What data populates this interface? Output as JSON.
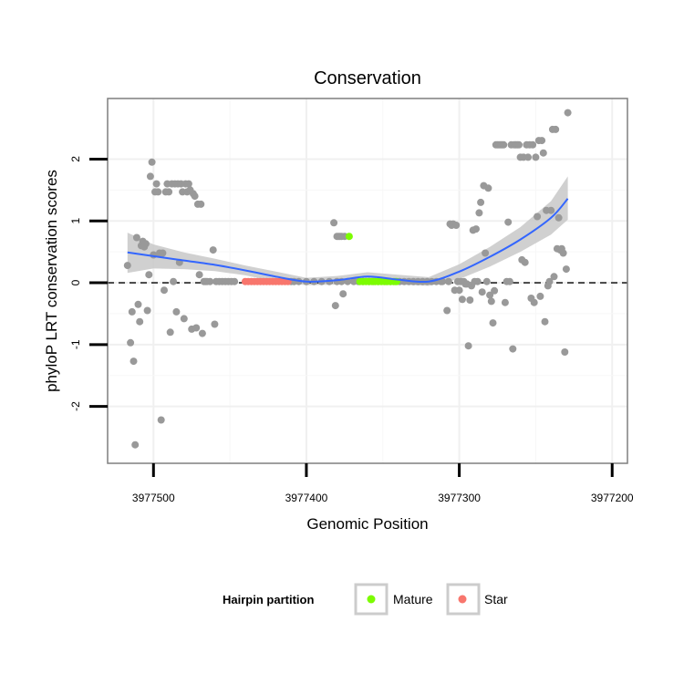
{
  "chart_data": {
    "type": "scatter",
    "title": "Conservation",
    "xlabel": "Genomic Position",
    "ylabel": "phyloP LRT conservation scores",
    "x_reversed": true,
    "xlim": [
      3977530,
      3977190
    ],
    "ylim": [
      -2.92,
      2.98
    ],
    "x_ticks": [
      3977500,
      3977400,
      3977300,
      3977200
    ],
    "x_tick_labels": [
      "3977500",
      "3977400",
      "3977300",
      "3977200"
    ],
    "y_ticks": [
      -2,
      -1,
      0,
      1,
      2
    ],
    "y_tick_labels": [
      "-2",
      "-1",
      "0",
      "1",
      "2"
    ],
    "grid": true,
    "reference_line": {
      "y": 0,
      "style": "dashed"
    },
    "legend": {
      "title": "Hairpin partition",
      "position": "bottom",
      "entries": [
        {
          "label": "Mature",
          "color": "#7cfc00"
        },
        {
          "label": "Star",
          "color": "#f8766d"
        }
      ]
    },
    "colors": {
      "points": "#999999",
      "smooth": "#3366ff",
      "ribbon": "#c8c8c8",
      "mature": "#7cfc00",
      "star": "#f8766d"
    },
    "series": [
      {
        "name": "Hairpin partition",
        "color": "#999999",
        "points": [
          [
            3977517,
            0.28
          ],
          [
            3977515,
            -0.97
          ],
          [
            3977514,
            -0.47
          ],
          [
            3977513,
            -1.27
          ],
          [
            3977512,
            -2.62
          ],
          [
            3977511,
            0.73
          ],
          [
            3977510,
            -0.35
          ],
          [
            3977509,
            -0.63
          ],
          [
            3977508,
            0.6
          ],
          [
            3977507,
            0.67
          ],
          [
            3977506,
            0.58
          ],
          [
            3977505,
            0.63
          ],
          [
            3977504,
            -0.45
          ],
          [
            3977503,
            0.13
          ],
          [
            3977502,
            1.72
          ],
          [
            3977501,
            1.95
          ],
          [
            3977500,
            0.45
          ],
          [
            3977499,
            1.47
          ],
          [
            3977498,
            1.6
          ],
          [
            3977497,
            1.47
          ],
          [
            3977496,
            0.48
          ],
          [
            3977495,
            -2.22
          ],
          [
            3977494,
            0.48
          ],
          [
            3977493,
            -0.12
          ],
          [
            3977492,
            1.47
          ],
          [
            3977491,
            1.6
          ],
          [
            3977490,
            1.47
          ],
          [
            3977489,
            -0.8
          ],
          [
            3977488,
            1.6
          ],
          [
            3977487,
            0.02
          ],
          [
            3977486,
            1.6
          ],
          [
            3977485,
            -0.47
          ],
          [
            3977484,
            1.6
          ],
          [
            3977483,
            0.33
          ],
          [
            3977482,
            1.6
          ],
          [
            3977481,
            1.47
          ],
          [
            3977480,
            -0.58
          ],
          [
            3977479,
            1.6
          ],
          [
            3977478,
            1.47
          ],
          [
            3977477,
            1.6
          ],
          [
            3977476,
            1.5
          ],
          [
            3977475,
            -0.75
          ],
          [
            3977474,
            1.44
          ],
          [
            3977473,
            1.4
          ],
          [
            3977472,
            -0.73
          ],
          [
            3977471,
            1.27
          ],
          [
            3977470,
            0.13
          ],
          [
            3977469,
            1.27
          ],
          [
            3977468,
            -0.82
          ],
          [
            3977467,
            0.02
          ],
          [
            3977466,
            0.02
          ],
          [
            3977465,
            0.02
          ],
          [
            3977463,
            0.02
          ],
          [
            3977461,
            0.53
          ],
          [
            3977460,
            -0.67
          ],
          [
            3977459,
            0.02
          ],
          [
            3977457,
            0.02
          ],
          [
            3977455,
            0.02
          ],
          [
            3977453,
            0.02
          ],
          [
            3977451,
            0.02
          ],
          [
            3977449,
            0.02
          ],
          [
            3977447,
            0.02
          ],
          [
            3977410,
            0.02
          ],
          [
            3977408,
            0.02
          ],
          [
            3977405,
            0.02
          ],
          [
            3977400,
            0.02
          ],
          [
            3977395,
            0.02
          ],
          [
            3977390,
            0.02
          ],
          [
            3977385,
            0.02
          ],
          [
            3977380,
            0.02
          ],
          [
            3977377,
            0.02
          ],
          [
            3977373,
            0.02
          ],
          [
            3977369,
            0.02
          ],
          [
            3977366,
            0.02
          ],
          [
            3977363,
            0.02
          ],
          [
            3977359,
            0.02
          ],
          [
            3977356,
            0.02
          ],
          [
            3977353,
            0.02
          ],
          [
            3977348,
            0.02
          ],
          [
            3977345,
            0.02
          ],
          [
            3977342,
            0.02
          ],
          [
            3977339,
            0.02
          ],
          [
            3977336,
            0.02
          ],
          [
            3977333,
            0.02
          ],
          [
            3977330,
            0.02
          ],
          [
            3977327,
            0.02
          ],
          [
            3977324,
            0.02
          ],
          [
            3977321,
            0.02
          ],
          [
            3977318,
            0.02
          ],
          [
            3977315,
            0.02
          ],
          [
            3977312,
            0.02
          ],
          [
            3977311,
            0.02
          ],
          [
            3977382,
            0.97
          ],
          [
            3977381,
            -0.37
          ],
          [
            3977380,
            0.75
          ],
          [
            3977379,
            0.75
          ],
          [
            3977378,
            0.75
          ],
          [
            3977377,
            0.75
          ],
          [
            3977376,
            -0.18
          ],
          [
            3977375,
            0.75
          ],
          [
            3977308,
            -0.45
          ],
          [
            3977307,
            0.02
          ],
          [
            3977306,
            0.95
          ],
          [
            3977305,
            0.93
          ],
          [
            3977304,
            0.95
          ],
          [
            3977303,
            -0.12
          ],
          [
            3977302,
            0.93
          ],
          [
            3977301,
            0.02
          ],
          [
            3977300,
            -0.12
          ],
          [
            3977299,
            0.02
          ],
          [
            3977298,
            -0.27
          ],
          [
            3977297,
            0.02
          ],
          [
            3977296,
            -0.02
          ],
          [
            3977295,
            -0.02
          ],
          [
            3977294,
            -1.02
          ],
          [
            3977293,
            -0.28
          ],
          [
            3977292,
            -0.05
          ],
          [
            3977291,
            0.85
          ],
          [
            3977290,
            0.02
          ],
          [
            3977289,
            0.87
          ],
          [
            3977288,
            0.02
          ],
          [
            3977287,
            1.13
          ],
          [
            3977286,
            1.3
          ],
          [
            3977285,
            -0.15
          ],
          [
            3977284,
            1.57
          ],
          [
            3977283,
            0.48
          ],
          [
            3977282,
            0.02
          ],
          [
            3977281,
            1.53
          ],
          [
            3977280,
            -0.2
          ],
          [
            3977279,
            -0.3
          ],
          [
            3977278,
            -0.65
          ],
          [
            3977277,
            -0.13
          ],
          [
            3977276,
            2.23
          ],
          [
            3977275,
            2.23
          ],
          [
            3977274,
            2.23
          ],
          [
            3977273,
            2.23
          ],
          [
            3977272,
            2.23
          ],
          [
            3977271,
            2.23
          ],
          [
            3977270,
            -0.32
          ],
          [
            3977269,
            0.02
          ],
          [
            3977268,
            0.98
          ],
          [
            3977267,
            0.02
          ],
          [
            3977266,
            2.23
          ],
          [
            3977265,
            -1.07
          ],
          [
            3977264,
            2.23
          ],
          [
            3977263,
            2.23
          ],
          [
            3977262,
            2.23
          ],
          [
            3977261,
            2.23
          ],
          [
            3977260,
            2.03
          ],
          [
            3977259,
            0.37
          ],
          [
            3977258,
            2.03
          ],
          [
            3977257,
            0.33
          ],
          [
            3977256,
            2.23
          ],
          [
            3977255,
            2.03
          ],
          [
            3977254,
            2.23
          ],
          [
            3977253,
            -0.25
          ],
          [
            3977252,
            2.23
          ],
          [
            3977251,
            -0.32
          ],
          [
            3977250,
            2.03
          ],
          [
            3977249,
            1.07
          ],
          [
            3977248,
            2.3
          ],
          [
            3977247,
            -0.22
          ],
          [
            3977246,
            2.3
          ],
          [
            3977245,
            2.1
          ],
          [
            3977244,
            -0.63
          ],
          [
            3977243,
            1.17
          ],
          [
            3977242,
            -0.05
          ],
          [
            3977241,
            0.02
          ],
          [
            3977240,
            1.17
          ],
          [
            3977239,
            2.48
          ],
          [
            3977238,
            0.1
          ],
          [
            3977237,
            2.48
          ],
          [
            3977236,
            0.55
          ],
          [
            3977235,
            1.05
          ],
          [
            3977234,
            0.53
          ],
          [
            3977233,
            0.55
          ],
          [
            3977232,
            0.48
          ],
          [
            3977231,
            -1.12
          ],
          [
            3977230,
            0.22
          ],
          [
            3977229,
            2.75
          ]
        ]
      },
      {
        "name": "Mature",
        "color": "#7cfc00",
        "points": [
          [
            3977372,
            0.75
          ],
          [
            3977365,
            0.02
          ],
          [
            3977363,
            0.02
          ],
          [
            3977361,
            0.02
          ],
          [
            3977359,
            0.02
          ],
          [
            3977357,
            0.02
          ],
          [
            3977355,
            0.02
          ],
          [
            3977353,
            0.02
          ],
          [
            3977351,
            0.02
          ],
          [
            3977349,
            0.02
          ],
          [
            3977347,
            0.02
          ],
          [
            3977345,
            0.02
          ],
          [
            3977343,
            0.02
          ],
          [
            3977341,
            0.02
          ]
        ]
      },
      {
        "name": "Star",
        "color": "#f8766d",
        "points": [
          [
            3977440,
            0.02
          ],
          [
            3977438,
            0.02
          ],
          [
            3977436,
            0.02
          ],
          [
            3977434,
            0.02
          ],
          [
            3977432,
            0.02
          ],
          [
            3977430,
            0.02
          ],
          [
            3977428,
            0.02
          ],
          [
            3977426,
            0.02
          ],
          [
            3977424,
            0.02
          ],
          [
            3977422,
            0.02
          ],
          [
            3977420,
            0.02
          ],
          [
            3977418,
            0.02
          ],
          [
            3977416,
            0.02
          ],
          [
            3977414,
            0.02
          ],
          [
            3977412,
            0.02
          ]
        ]
      }
    ],
    "smooth": {
      "x": [
        3977517,
        3977500,
        3977480,
        3977460,
        3977440,
        3977420,
        3977400,
        3977380,
        3977360,
        3977340,
        3977320,
        3977300,
        3977280,
        3977260,
        3977240,
        3977229
      ],
      "y": [
        0.49,
        0.43,
        0.36,
        0.29,
        0.2,
        0.1,
        0.02,
        0.04,
        0.1,
        0.05,
        0.02,
        0.18,
        0.42,
        0.7,
        1.05,
        1.36
      ],
      "upper": [
        0.81,
        0.62,
        0.49,
        0.39,
        0.28,
        0.18,
        0.08,
        0.11,
        0.17,
        0.13,
        0.09,
        0.3,
        0.58,
        0.9,
        1.32,
        1.72
      ],
      "lower": [
        0.16,
        0.23,
        0.22,
        0.19,
        0.12,
        0.02,
        -0.04,
        -0.03,
        0.03,
        -0.03,
        -0.05,
        0.06,
        0.26,
        0.5,
        0.78,
        1.02
      ]
    }
  }
}
